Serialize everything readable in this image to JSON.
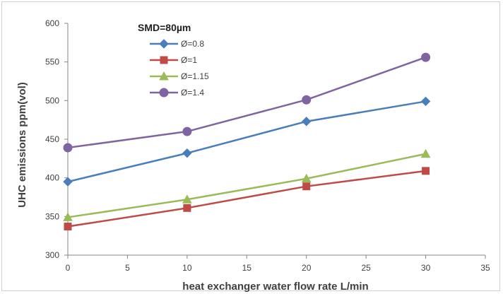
{
  "chart_data": {
    "type": "line",
    "xlabel": "heat exchanger water flow rate L/min",
    "ylabel": "UHC emissions ppm(vol)",
    "xlim": [
      0,
      35
    ],
    "ylim": [
      300,
      600
    ],
    "x_ticks": [
      0,
      5,
      10,
      15,
      20,
      25,
      30,
      35
    ],
    "y_ticks": [
      300,
      350,
      400,
      450,
      500,
      550,
      600
    ],
    "grid": false,
    "legend_title": "SMD=80µm",
    "legend_position": "top-left inside plot",
    "x": [
      0,
      10,
      20,
      30
    ],
    "series": [
      {
        "name": "Ø=0.8",
        "values": [
          395,
          432,
          473,
          499
        ],
        "color": "#4a7ebb",
        "marker": "diamond"
      },
      {
        "name": "Ø=1",
        "values": [
          337,
          361,
          389,
          409
        ],
        "color": "#be4b48",
        "marker": "square"
      },
      {
        "name": "Ø=1.15",
        "values": [
          349,
          372,
          399,
          431
        ],
        "color": "#9bbb59",
        "marker": "triangle"
      },
      {
        "name": "Ø=1.4",
        "values": [
          439,
          460,
          501,
          556
        ],
        "color": "#8064a2",
        "marker": "circle"
      }
    ]
  }
}
